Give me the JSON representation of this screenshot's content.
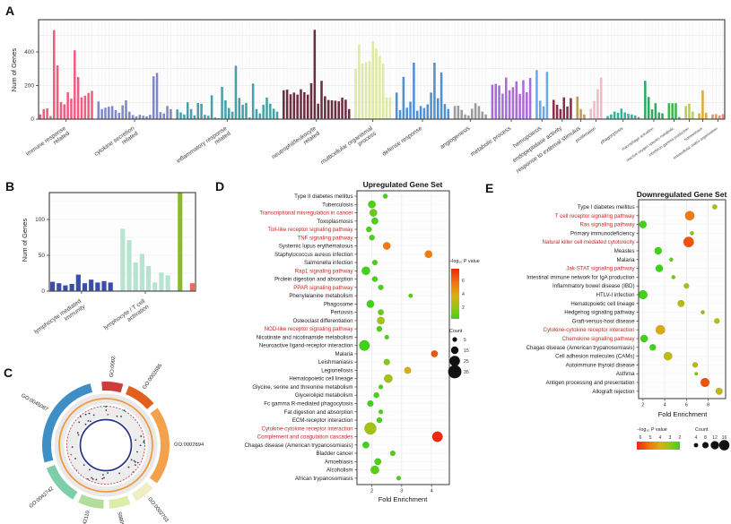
{
  "chart_data": [
    {
      "panel": "A",
      "type": "bar",
      "ylabel": "Num of Genes",
      "yticks": [
        0,
        200,
        400
      ],
      "ylim": [
        0,
        560
      ],
      "grid": true,
      "groups": [
        {
          "label": "immune response\nrelated",
          "color": "#ef5d7f",
          "values": [
            28,
            60,
            64,
            18,
            530,
            320,
            102,
            88,
            160,
            122,
            410,
            250,
            130,
            140,
            156,
            168
          ]
        },
        {
          "label": "cytokine secretion\nrelated",
          "color": "#7e88c6",
          "values": [
            105,
            60,
            68,
            74,
            78,
            54,
            38,
            82,
            112,
            44,
            24,
            16,
            26,
            20,
            16,
            26,
            255,
            275,
            42,
            34,
            78,
            60
          ]
        },
        {
          "label": "inflammatory response\nrelated",
          "color": "#47a0a8",
          "values": [
            58,
            40,
            28,
            100,
            60,
            22,
            96,
            92,
            26,
            20,
            142,
            10,
            6,
            192,
            112,
            66,
            44,
            318,
            126,
            86,
            96,
            10,
            212,
            60,
            34,
            86,
            128,
            92,
            62,
            44
          ]
        },
        {
          "label": "neutrophil/leukocyte\nrelated",
          "color": "#6b2e40",
          "values": [
            172,
            176,
            148,
            158,
            146,
            178,
            160,
            146,
            214,
            532,
            92,
            228,
            136,
            114,
            112,
            110,
            106,
            128,
            116,
            60
          ]
        },
        {
          "label": "multicellular organismal\nprocess",
          "color": "#dde9a5",
          "values": [
            300,
            445,
            330,
            338,
            345,
            465,
            420,
            375,
            330,
            128,
            130
          ]
        },
        {
          "label": "defense response",
          "color": "#4e90d4",
          "values": [
            158,
            54,
            252,
            68,
            104,
            336,
            50,
            78,
            66,
            88,
            158,
            336,
            124,
            278,
            90,
            60
          ]
        },
        {
          "label": "angiogenesis",
          "color": "#9b9b9b",
          "values": [
            78,
            80,
            55,
            28,
            22,
            62,
            95,
            78,
            45,
            28
          ]
        },
        {
          "label": "metabolic process",
          "color": "#a96bd8",
          "values": [
            205,
            210,
            200,
            152,
            248,
            172,
            190,
            225,
            150,
            232,
            160,
            245
          ]
        },
        {
          "label": "hemopoiesis",
          "color": "#68a9ea",
          "values": [
            292,
            110,
            76,
            282
          ]
        },
        {
          "label": "endopeptidase activity",
          "color": "#8e2b4a",
          "values": [
            115,
            85,
            60,
            130,
            75,
            125
          ]
        },
        {
          "label": "response to external stimulus",
          "color": "#c1995f",
          "values": [
            135,
            60,
            28
          ]
        },
        {
          "label": "proliferation",
          "color": "#f3b9c6",
          "values": [
            62,
            108,
            178,
            248
          ]
        },
        {
          "label": "phagocytosis",
          "color": "#30b39a",
          "values": [
            18,
            28,
            45,
            38,
            62,
            40,
            32,
            28,
            22,
            12
          ]
        },
        {
          "label": "macrophage activation",
          "color": "#2faa5c",
          "values": [
            228,
            132,
            58,
            95,
            40,
            35
          ]
        },
        {
          "label": "reactive oxygen species metabolic",
          "color": "#3cb54a",
          "values": [
            95,
            95,
            95,
            12
          ]
        },
        {
          "label": "interferon gamma production",
          "color": "#b9cf45",
          "values": [
            78,
            92,
            45
          ]
        },
        {
          "label": "homeostasis",
          "color": "#e5a63c",
          "values": [
            35,
            172,
            38
          ]
        },
        {
          "label": "extracellular matrix organization",
          "color": "#f28a72",
          "values": [
            28,
            30,
            22,
            30
          ]
        }
      ]
    },
    {
      "panel": "B",
      "type": "bar",
      "ylabel": "Num of Genes",
      "yticks": [
        0,
        50,
        100
      ],
      "ylim": [
        0,
        140
      ],
      "groups": [
        {
          "label": "lymphocyte mediated\nimmunity",
          "color": "#3a4da8",
          "values": [
            13,
            11,
            8,
            10,
            23,
            11,
            16,
            12,
            14,
            12
          ]
        },
        {
          "label": "lymphocyte / T cell\nactivation",
          "color": "#b7e3d0",
          "values": [
            87,
            71,
            40,
            52,
            35,
            12,
            26,
            22
          ]
        },
        {
          "label": "",
          "color": "#8cb832",
          "values": [
            137
          ]
        },
        {
          "label": "",
          "color": "#ef6a5a",
          "values": [
            11
          ]
        }
      ]
    },
    {
      "panel": "C",
      "type": "circular-go",
      "segments": [
        {
          "id": "GO:0002449",
          "color": "#cf3b3b",
          "span": 22
        },
        {
          "id": "GO:0002685",
          "color": "#e2601f",
          "span": 30
        },
        {
          "id": "GO:0002694",
          "color": "#f3a14b",
          "span": 75
        },
        {
          "id": "GO:0002703",
          "color": "#efeec4",
          "span": 22
        },
        {
          "id": "GO:0050865",
          "color": "#dcedaa",
          "span": 22
        },
        {
          "id": "GO:0042110",
          "color": "#b2dd9b",
          "span": 26
        },
        {
          "id": "GO:0042742",
          "color": "#7fceaa",
          "span": 40
        },
        {
          "id": "GO:0045087",
          "color": "#3f8ec6",
          "span": 94
        }
      ],
      "ring_colors": {
        "outer_band": "#e9e9e9",
        "orange_ring": "#f09a40",
        "red_ring": "#c84848",
        "navy_ring": "#27348b",
        "dot": "#3b3b5e"
      }
    },
    {
      "panel": "D",
      "type": "scatter",
      "title": "Upregulated Gene Set",
      "xlabel": "Fold Enrichment",
      "xticks": [
        2,
        3,
        4
      ],
      "xdomain": [
        1.5,
        4.6
      ],
      "legend": {
        "pvalue_title": "−log₁₀ P value",
        "pvalue_ticks": [
          6,
          4,
          2
        ],
        "count_title": "Count",
        "count_items": [
          5,
          15,
          25,
          35
        ]
      },
      "highlight_color": "#cc2222",
      "rows": [
        {
          "label": "Type II diabetes mellitus",
          "hl": false,
          "fold": 2.45,
          "count": 5,
          "logp": 2.0
        },
        {
          "label": "Tuberculosis",
          "hl": false,
          "fold": 2.0,
          "count": 15,
          "logp": 2.0
        },
        {
          "label": "Transcriptional misregulation in cancer",
          "hl": true,
          "fold": 2.05,
          "count": 15,
          "logp": 2.5
        },
        {
          "label": "Toxoplasmosis",
          "hl": false,
          "fold": 2.1,
          "count": 12,
          "logp": 2.0
        },
        {
          "label": "Toll-like receptor signaling pathway",
          "hl": true,
          "fold": 1.9,
          "count": 8,
          "logp": 2.0
        },
        {
          "label": "TNF signaling pathway",
          "hl": true,
          "fold": 2.0,
          "count": 8,
          "logp": 2.0
        },
        {
          "label": "Systemic lupus erythematosus",
          "hl": false,
          "fold": 2.5,
          "count": 15,
          "logp": 5.5
        },
        {
          "label": "Staphylococcus aureus infection",
          "hl": false,
          "fold": 3.9,
          "count": 15,
          "logp": 5.5
        },
        {
          "label": "Salmonella infection",
          "hl": false,
          "fold": 2.1,
          "count": 7,
          "logp": 2.0
        },
        {
          "label": "Rap1 signaling pathway",
          "hl": true,
          "fold": 1.8,
          "count": 18,
          "logp": 1.5
        },
        {
          "label": "Protein digestion and absorption",
          "hl": false,
          "fold": 2.1,
          "count": 8,
          "logp": 2.0
        },
        {
          "label": "PPAR signaling pathway",
          "hl": true,
          "fold": 2.3,
          "count": 7,
          "logp": 2.0
        },
        {
          "label": "Phenylalanine metabolism",
          "hl": false,
          "fold": 3.3,
          "count": 3,
          "logp": 2.0
        },
        {
          "label": "Phagosome",
          "hl": false,
          "fold": 1.95,
          "count": 15,
          "logp": 1.8
        },
        {
          "label": "Pertussis",
          "hl": false,
          "fold": 2.3,
          "count": 9,
          "logp": 2.5
        },
        {
          "label": "Osteoclast differentiation",
          "hl": false,
          "fold": 2.3,
          "count": 15,
          "logp": 3.5
        },
        {
          "label": "NOD-like receptor signaling pathway",
          "hl": true,
          "fold": 2.25,
          "count": 8,
          "logp": 2.0
        },
        {
          "label": "Nicotinate and nicotinamide metabolism",
          "hl": false,
          "fold": 2.5,
          "count": 4,
          "logp": 2.0
        },
        {
          "label": "Neuroactive ligand-receptor interaction",
          "hl": false,
          "fold": 1.75,
          "count": 25,
          "logp": 1.5
        },
        {
          "label": "Malaria",
          "hl": false,
          "fold": 4.1,
          "count": 12,
          "logp": 6.0
        },
        {
          "label": "Leishmaniasis",
          "hl": false,
          "fold": 2.5,
          "count": 10,
          "logp": 3.0
        },
        {
          "label": "Legionellosis",
          "hl": false,
          "fold": 3.2,
          "count": 12,
          "logp": 4.5
        },
        {
          "label": "Hematopoietic cell lineage",
          "hl": false,
          "fold": 2.55,
          "count": 18,
          "logp": 3.5
        },
        {
          "label": "Glycine, serine and threonine metabolism",
          "hl": false,
          "fold": 2.3,
          "count": 4,
          "logp": 2.0
        },
        {
          "label": "Glycerolipid metabolism",
          "hl": false,
          "fold": 2.15,
          "count": 8,
          "logp": 2.0
        },
        {
          "label": "Fc gamma R-mediated phagocytosis",
          "hl": false,
          "fold": 1.95,
          "count": 10,
          "logp": 1.8
        },
        {
          "label": "Fat digestion and absorption",
          "hl": false,
          "fold": 2.3,
          "count": 4,
          "logp": 2.0
        },
        {
          "label": "ECM-receptor interaction",
          "hl": false,
          "fold": 2.25,
          "count": 8,
          "logp": 2.0
        },
        {
          "label": "Cytokine-cytokine receptor interaction",
          "hl": true,
          "fold": 1.95,
          "count": 30,
          "logp": 3.5
        },
        {
          "label": "Complement and coagulation cascades",
          "hl": true,
          "fold": 4.2,
          "count": 25,
          "logp": 7.0
        },
        {
          "label": "Chagas disease (American trypanosomiasis)",
          "hl": false,
          "fold": 1.8,
          "count": 12,
          "logp": 1.5
        },
        {
          "label": "Bladder cancer",
          "hl": false,
          "fold": 2.7,
          "count": 7,
          "logp": 2.0
        },
        {
          "label": "Amoebiasis",
          "hl": false,
          "fold": 2.2,
          "count": 12,
          "logp": 2.0
        },
        {
          "label": "Alcoholism",
          "hl": false,
          "fold": 2.1,
          "count": 18,
          "logp": 2.2
        },
        {
          "label": "African trypanosomiasis",
          "hl": false,
          "fold": 2.9,
          "count": 4,
          "logp": 2.0
        }
      ]
    },
    {
      "panel": "E",
      "type": "scatter",
      "title": "Downregulated Gene Set",
      "xlabel": "Fold Enrichment",
      "xticks": [
        2,
        4,
        6,
        8
      ],
      "xdomain": [
        1.6,
        9.6
      ],
      "legend": {
        "pvalue_title": "−log₁₀ P value",
        "pvalue_ticks": [
          6,
          5,
          4,
          3,
          2
        ],
        "count_title": "Count",
        "count_items": [
          4,
          8,
          12,
          16
        ]
      },
      "highlight_color": "#cc2222",
      "rows": [
        {
          "label": "Type I diabetes mellitus",
          "hl": false,
          "fold": 8.6,
          "count": 5,
          "logp": 3.5
        },
        {
          "label": "T cell receptor signaling pathway",
          "hl": true,
          "fold": 6.3,
          "count": 14,
          "logp": 5.5
        },
        {
          "label": "Ras signaling pathway",
          "hl": true,
          "fold": 2.0,
          "count": 10,
          "logp": 1.5
        },
        {
          "label": "Primary immunodeficiency",
          "hl": false,
          "fold": 6.5,
          "count": 3,
          "logp": 3.0
        },
        {
          "label": "Natural killer cell mediated cytotoxicity",
          "hl": true,
          "fold": 6.2,
          "count": 16,
          "logp": 6.0
        },
        {
          "label": "Measles",
          "hl": false,
          "fold": 3.4,
          "count": 10,
          "logp": 1.8
        },
        {
          "label": "Malaria",
          "hl": false,
          "fold": 4.6,
          "count": 3,
          "logp": 2.5
        },
        {
          "label": "Jak-STAT signaling pathway",
          "hl": true,
          "fold": 3.5,
          "count": 10,
          "logp": 1.8
        },
        {
          "label": "Intestinal immune network for IgA production",
          "hl": false,
          "fold": 4.8,
          "count": 3,
          "logp": 2.5
        },
        {
          "label": "Inflammatory bowel disease (IBD)",
          "hl": false,
          "fold": 6.0,
          "count": 6,
          "logp": 3.5
        },
        {
          "label": "HTLV-I infection",
          "hl": false,
          "fold": 2.0,
          "count": 13,
          "logp": 1.5
        },
        {
          "label": "Hematopoietic cell lineage",
          "hl": false,
          "fold": 5.5,
          "count": 9,
          "logp": 3.8
        },
        {
          "label": "Hedgehog signaling pathway",
          "hl": false,
          "fold": 7.5,
          "count": 3,
          "logp": 3.0
        },
        {
          "label": "Graft-versus-host disease",
          "hl": false,
          "fold": 8.8,
          "count": 6,
          "logp": 3.8
        },
        {
          "label": "Cytokine-cytokine receptor interaction",
          "hl": true,
          "fold": 3.6,
          "count": 14,
          "logp": 4.5
        },
        {
          "label": "Chemokine signaling pathway",
          "hl": true,
          "fold": 2.1,
          "count": 10,
          "logp": 1.5
        },
        {
          "label": "Chagas disease (American trypanosomiasis)",
          "hl": false,
          "fold": 2.9,
          "count": 8,
          "logp": 1.8
        },
        {
          "label": "Cell adhesion molecules (CAMs)",
          "hl": false,
          "fold": 4.3,
          "count": 12,
          "logp": 4.0
        },
        {
          "label": "Autoimmune thyroid disease",
          "hl": false,
          "fold": 6.8,
          "count": 6,
          "logp": 3.8
        },
        {
          "label": "Asthma",
          "hl": false,
          "fold": 6.9,
          "count": 2,
          "logp": 3.0
        },
        {
          "label": "Antigen processing and presentation",
          "hl": false,
          "fold": 7.7,
          "count": 13,
          "logp": 6.0
        },
        {
          "label": "Allograft rejection",
          "hl": false,
          "fold": 9.0,
          "count": 9,
          "logp": 4.0
        }
      ]
    }
  ],
  "color_scale": {
    "low": "#3ed314",
    "mid": "#d8b010",
    "high": "#ee2808"
  }
}
